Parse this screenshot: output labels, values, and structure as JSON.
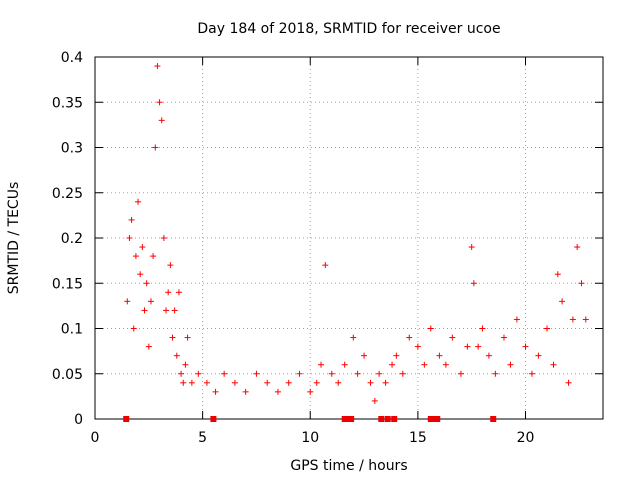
{
  "chart_data": {
    "type": "scatter",
    "title": "Day 184 of 2018, SRMTID for receiver ucoe",
    "xlabel": "GPS time / hours",
    "ylabel": "SRMTID / TECUs",
    "xlim": [
      0,
      23.6
    ],
    "ylim": [
      0,
      0.4
    ],
    "x_ticks": [
      0,
      5,
      10,
      15,
      20
    ],
    "x_tick_labels": [
      "0",
      "5",
      "10",
      "15",
      "20"
    ],
    "y_ticks": [
      0,
      0.05,
      0.1,
      0.15,
      0.2,
      0.25,
      0.3,
      0.35,
      0.4
    ],
    "y_tick_labels": [
      "0",
      "0.05",
      "0.1",
      "0.15",
      "0.2",
      "0.25",
      "0.3",
      "0.35",
      "0.4"
    ],
    "grid": true,
    "marker": "plus",
    "color": "#ff0000",
    "series": [
      {
        "name": "SRMTID",
        "x": [
          1.5,
          1.6,
          1.7,
          1.8,
          1.9,
          2.0,
          2.1,
          2.2,
          2.3,
          2.4,
          2.5,
          2.6,
          2.7,
          2.8,
          2.9,
          3.0,
          3.1,
          3.2,
          3.3,
          3.4,
          3.5,
          3.6,
          3.7,
          3.8,
          3.9,
          4.0,
          4.1,
          4.2,
          4.3,
          4.5,
          4.8,
          5.2,
          5.6,
          6.0,
          6.5,
          7.0,
          7.5,
          8.0,
          8.5,
          9.0,
          9.5,
          10.0,
          10.3,
          10.5,
          10.7,
          11.0,
          11.3,
          11.6,
          12.0,
          12.2,
          12.5,
          12.8,
          13.0,
          13.2,
          13.5,
          13.8,
          14.0,
          14.3,
          14.6,
          15.0,
          15.3,
          15.6,
          16.0,
          16.3,
          16.6,
          17.0,
          17.3,
          17.5,
          17.6,
          17.8,
          18.0,
          18.3,
          18.6,
          19.0,
          19.3,
          19.6,
          20.0,
          20.3,
          20.6,
          21.0,
          21.3,
          21.5,
          21.7,
          22.0,
          22.2,
          22.4,
          22.6,
          22.8
        ],
        "y": [
          0.13,
          0.2,
          0.22,
          0.1,
          0.18,
          0.24,
          0.16,
          0.19,
          0.12,
          0.15,
          0.08,
          0.13,
          0.18,
          0.3,
          0.39,
          0.35,
          0.33,
          0.2,
          0.12,
          0.14,
          0.17,
          0.09,
          0.12,
          0.07,
          0.14,
          0.05,
          0.04,
          0.06,
          0.09,
          0.04,
          0.05,
          0.04,
          0.03,
          0.05,
          0.04,
          0.03,
          0.05,
          0.04,
          0.03,
          0.04,
          0.05,
          0.03,
          0.04,
          0.06,
          0.17,
          0.05,
          0.04,
          0.06,
          0.09,
          0.05,
          0.07,
          0.04,
          0.02,
          0.05,
          0.04,
          0.06,
          0.07,
          0.05,
          0.09,
          0.08,
          0.06,
          0.1,
          0.07,
          0.06,
          0.09,
          0.05,
          0.08,
          0.19,
          0.15,
          0.08,
          0.1,
          0.07,
          0.05,
          0.09,
          0.06,
          0.11,
          0.08,
          0.05,
          0.07,
          0.1,
          0.06,
          0.16,
          0.13,
          0.04,
          0.11,
          0.19,
          0.15,
          0.11
        ]
      }
    ],
    "zero_markers_x": [
      1.45,
      5.5,
      11.6,
      11.75,
      11.9,
      13.3,
      13.6,
      13.9,
      15.6,
      15.75,
      15.9,
      18.5
    ]
  }
}
